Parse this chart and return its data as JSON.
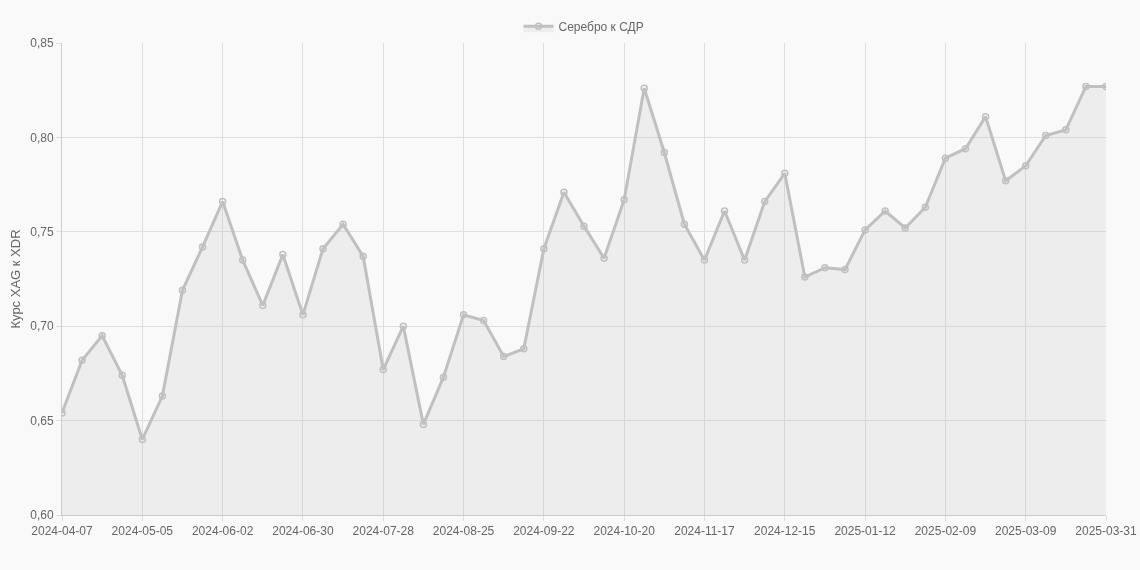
{
  "chart_data": {
    "type": "area",
    "ylabel": "Курс XAG к XDR",
    "categories": [
      "2024-04-07",
      null,
      null,
      null,
      "2024-05-05",
      null,
      null,
      null,
      "2024-06-02",
      null,
      null,
      null,
      "2024-06-30",
      null,
      null,
      null,
      "2024-07-28",
      null,
      null,
      null,
      "2024-08-25",
      null,
      null,
      null,
      "2024-09-22",
      null,
      null,
      null,
      "2024-10-20",
      null,
      null,
      null,
      "2024-11-17",
      null,
      null,
      null,
      "2024-12-15",
      null,
      null,
      null,
      "2025-01-12",
      null,
      null,
      null,
      "2025-02-09",
      null,
      null,
      null,
      "2025-03-09",
      null,
      null,
      null,
      "2025-03-31"
    ],
    "series": [
      {
        "name": "Серебро к СДР",
        "color": "#c0c0c0",
        "values": [
          0.654,
          0.682,
          0.695,
          0.674,
          0.64,
          0.663,
          0.719,
          0.742,
          0.766,
          0.735,
          0.711,
          0.738,
          0.706,
          0.741,
          0.754,
          0.737,
          0.677,
          0.7,
          0.648,
          0.673,
          0.706,
          0.703,
          0.684,
          0.688,
          0.741,
          0.771,
          0.753,
          0.736,
          0.767,
          0.826,
          0.792,
          0.754,
          0.735,
          0.761,
          0.735,
          0.766,
          0.781,
          0.726,
          0.731,
          0.73,
          0.751,
          0.761,
          0.752,
          0.763,
          0.789,
          0.794,
          0.811,
          0.777,
          0.785,
          0.801,
          0.804,
          0.827,
          0.827
        ]
      }
    ],
    "ylim": [
      0.6,
      0.85
    ],
    "yticks": [
      {
        "value": 0.6,
        "label": "0,60"
      },
      {
        "value": 0.65,
        "label": "0,65"
      },
      {
        "value": 0.7,
        "label": "0,70"
      },
      {
        "value": 0.75,
        "label": "0,75"
      },
      {
        "value": 0.8,
        "label": "0,80"
      },
      {
        "value": 0.85,
        "label": "0,85"
      }
    ],
    "grid": true,
    "legend": "top",
    "marker": "circle",
    "line_style": "solid"
  }
}
